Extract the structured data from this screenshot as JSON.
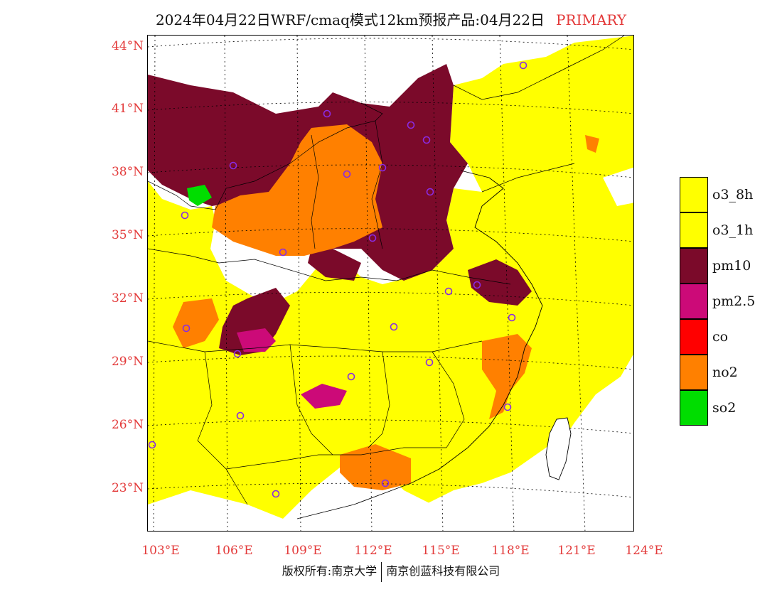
{
  "title": {
    "main": "2024年04月22日WRF/cmaq模式12km预报产品:04月22日",
    "highlight": "PRIMARY"
  },
  "map": {
    "lat_labels": [
      "44°N",
      "41°N",
      "38°N",
      "35°N",
      "32°N",
      "29°N",
      "26°N",
      "23°N"
    ],
    "lon_labels": [
      "103°E",
      "106°E",
      "109°E",
      "112°E",
      "115°E",
      "118°E",
      "121°E",
      "124°E"
    ]
  },
  "legend": {
    "items": [
      {
        "label": "o3_8h",
        "color": "#ffff00"
      },
      {
        "label": "o3_1h",
        "color": "#ffff00"
      },
      {
        "label": "pm10",
        "color": "#7b0a2a"
      },
      {
        "label": "pm2.5",
        "color": "#cc0a78"
      },
      {
        "label": "co",
        "color": "#ff0000"
      },
      {
        "label": "no2",
        "color": "#ff8000"
      },
      {
        "label": "so2",
        "color": "#00dd00"
      }
    ]
  },
  "copyright": {
    "left": "版权所有:南京大学",
    "right": "南京创蓝科技有限公司"
  }
}
